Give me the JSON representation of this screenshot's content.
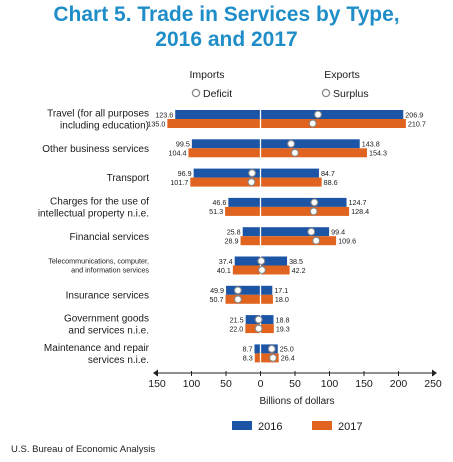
{
  "title_line1": "Chart 5. Trade in Services by Type,",
  "title_line2": "2016 and 2017",
  "source": "U.S. Bureau of Economic Analysis",
  "colors": {
    "s2016": "#1c55a6",
    "s2017": "#e0641f",
    "title": "#1f8ec8",
    "marker_fill": "#ffffff",
    "marker_edge": "#888888"
  },
  "chart_data": {
    "type": "bar",
    "orientation": "horizontal",
    "diverging": true,
    "left_header": "Imports",
    "right_header": "Exports",
    "marker_labels": {
      "left": "Deficit",
      "right": "Surplus"
    },
    "xlabel": "Billions of dollars",
    "xlim": [
      -150,
      250
    ],
    "xticks": [
      -150,
      -100,
      -50,
      0,
      50,
      100,
      150,
      200,
      250
    ],
    "xtick_labels": [
      "150",
      "100",
      "50",
      "0",
      "50",
      "100",
      "150",
      "200",
      "250"
    ],
    "categories": [
      [
        "Travel (for all purposes",
        "including education)"
      ],
      [
        "Other business services"
      ],
      [
        "Transport"
      ],
      [
        "Charges for the use of",
        "intellectual property n.i.e."
      ],
      [
        "Financial services"
      ],
      [
        "Telecommunications, computer,",
        "and information services"
      ],
      [
        "Insurance services"
      ],
      [
        "Government goods",
        "and services n.i.e."
      ],
      [
        "Maintenance and repair",
        "services n.i.e."
      ]
    ],
    "series": [
      {
        "name": "2016",
        "imports": [
          "123.6",
          "99.5",
          "96.9",
          "46.6",
          "25.8",
          "37.4",
          "49.9",
          "21.5",
          "8.7"
        ],
        "exports": [
          "206.9",
          "143.8",
          "84.7",
          "124.7",
          "99.4",
          "38.5",
          "17.1",
          "18.8",
          "25.0"
        ],
        "balance": [
          83.3,
          44.3,
          -12.2,
          78.1,
          73.6,
          1.1,
          -32.8,
          -2.7,
          16.3
        ]
      },
      {
        "name": "2017",
        "imports": [
          "135.0",
          "104.4",
          "101.7",
          "51.3",
          "28.9",
          "40.1",
          "50.7",
          "22.0",
          "8.3"
        ],
        "exports": [
          "210.7",
          "154.3",
          "88.6",
          "128.4",
          "109.6",
          "42.2",
          "18.0",
          "19.3",
          "26.4"
        ],
        "balance": [
          75.7,
          49.9,
          -13.1,
          77.1,
          80.7,
          2.1,
          -32.7,
          -2.7,
          18.1
        ]
      }
    ]
  }
}
